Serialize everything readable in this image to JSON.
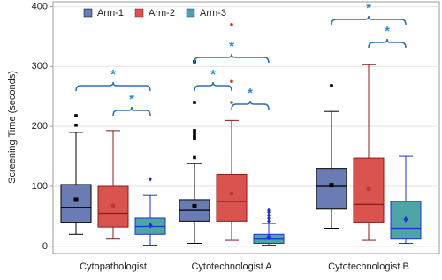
{
  "chart_data": {
    "type": "box",
    "ylabel": "Screening Time (seconds)",
    "categories": [
      "Cytopathologist",
      "Cytotechnologist A",
      "Cytotechnologist B"
    ],
    "ylim": [
      -12,
      408
    ],
    "yticks": [
      0,
      100,
      200,
      300,
      400
    ],
    "grid": true,
    "legend": "top-left",
    "series": [
      {
        "name": "Arm-1",
        "color": "#6a7cb3",
        "line_color": "#000000",
        "marker": "square",
        "min": [
          20,
          5,
          30
        ],
        "q1": [
          40,
          42,
          62
        ],
        "median": [
          65,
          60,
          100
        ],
        "q3": [
          103,
          78,
          130
        ],
        "max": [
          190,
          138,
          225
        ],
        "mean": [
          78,
          67,
          102
        ],
        "outliers": [
          [
            202,
            218
          ],
          [
            148,
            180,
            185,
            190,
            193,
            240,
            308
          ],
          [
            268
          ]
        ]
      },
      {
        "name": "Arm-2",
        "color": "#d9534f",
        "line_color": "#8b1a1a",
        "marker": "circle",
        "min": [
          12,
          10,
          10
        ],
        "q1": [
          32,
          42,
          40
        ],
        "median": [
          55,
          75,
          70
        ],
        "q3": [
          100,
          120,
          147
        ],
        "max": [
          193,
          210,
          303
        ],
        "mean": [
          68,
          88,
          96
        ],
        "outliers": [
          [],
          [
            240,
            275,
            370
          ],
          []
        ]
      },
      {
        "name": "Arm-3",
        "color": "#4fa5a5",
        "line_color": "#1f2fd0",
        "marker": "diamond",
        "min": [
          2,
          2,
          5
        ],
        "q1": [
          20,
          5,
          12
        ],
        "median": [
          33,
          12,
          30
        ],
        "q3": [
          47,
          20,
          75
        ],
        "max": [
          85,
          38,
          150
        ],
        "mean": [
          35,
          15,
          45
        ],
        "outliers": [
          [
            112
          ],
          [
            42,
            47,
            52,
            57,
            60
          ],
          []
        ]
      }
    ],
    "annotations": [
      "*",
      "*",
      "*",
      "*",
      "*",
      "*",
      "*"
    ]
  }
}
